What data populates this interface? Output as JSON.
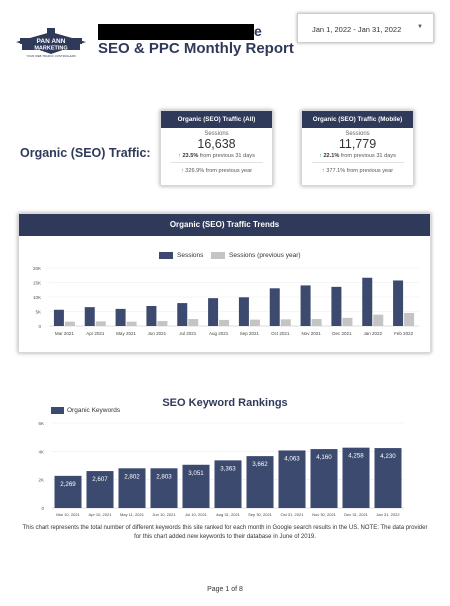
{
  "header": {
    "title_visible_tail": "e",
    "report_title": "SEO & PPC Monthly Report",
    "date_range": "Jan 1, 2022 - Jan 31, 2022",
    "logo": {
      "line1": "PAN ANN",
      "line2": "MARKETING",
      "tagline": "YOUR WEB TRAFFIC CONTROLLERS"
    }
  },
  "section_label": "Organic (SEO) Traffic:",
  "kpis": [
    {
      "title": "Organic (SEO) Traffic (All)",
      "metric": "Sessions",
      "value": "16,638",
      "change_31": "23.5%",
      "change_31_label": "from previous 31 days",
      "change_year": "326.9%",
      "change_year_label": "from previous year"
    },
    {
      "title": "Organic (SEO) Traffic (Mobile)",
      "metric": "Sessions",
      "value": "11,779",
      "change_31": "22.1%",
      "change_31_label": "from previous 31 days",
      "change_year": "377.1%",
      "change_year_label": "from previous year"
    }
  ],
  "colors": {
    "navy": "#2f3a5a",
    "bar_primary": "#3b4a6e",
    "bar_previous": "#c4c4c4",
    "arrow_up": "#2e9c4a"
  },
  "chart_data": [
    {
      "type": "bar",
      "title": "Organic (SEO) Traffic Trends",
      "categories": [
        "Mar 2021",
        "Apr 2021",
        "May 2021",
        "Jun 2021",
        "Jul 2021",
        "Aug 2021",
        "Sep 2021",
        "Oct 2021",
        "Nov 2021",
        "Dec 2021",
        "Jan 2022",
        "Feb 2022"
      ],
      "series": [
        {
          "name": "Sessions",
          "values": [
            5600,
            6500,
            5900,
            6900,
            7900,
            9600,
            9900,
            13000,
            14000,
            13500,
            16638,
            15700
          ]
        },
        {
          "name": "Sessions (previous year)",
          "values": [
            1500,
            1600,
            1500,
            1700,
            2400,
            2100,
            2200,
            2300,
            2400,
            2800,
            3900,
            4500
          ]
        }
      ],
      "yticks": [
        "0",
        "5K",
        "10K",
        "15K",
        "20K"
      ],
      "ylim": [
        0,
        20000
      ],
      "legend": "top-center"
    },
    {
      "type": "bar",
      "title": "SEO Keyword Rankings",
      "categories": [
        "Mar 10, 2021",
        "Apr 10, 2021",
        "May 11, 2021",
        "Jun 10, 2021",
        "Jul 10, 2021",
        "Aug 31, 2021",
        "Sep 30, 2021",
        "Oct 31, 2021",
        "Nov 30, 2021",
        "Dec 31, 2021",
        "Jan 31, 2022"
      ],
      "series": [
        {
          "name": "Organic Keywords",
          "values": [
            2269,
            2607,
            2802,
            2803,
            3051,
            3363,
            3662,
            4063,
            4160,
            4258,
            4230
          ]
        }
      ],
      "value_labels": [
        "2,269",
        "2,607",
        "2,802",
        "2,803",
        "3,051",
        "3,363",
        "3,662",
        "4,063",
        "4,160",
        "4,258",
        "4,230"
      ],
      "yticks": [
        "0",
        "2K",
        "4K",
        "6K"
      ],
      "ylim": [
        0,
        6000
      ],
      "legend": "top-left"
    }
  ],
  "note": "This chart represents the total number of different keywords this site ranked for each month in Google search results in the US. NOTE: The data provider for this chart added new keywords to their database in June of 2019.",
  "footer": "Page 1 of 8"
}
